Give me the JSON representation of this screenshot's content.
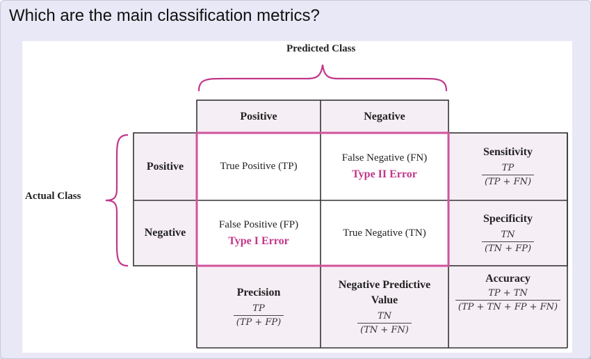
{
  "question": "Which are the main classification metrics?",
  "figure": {
    "predicted_class_label": "Predicted Class",
    "actual_class_label": "Actual Class",
    "col_headers": {
      "positive": "Positive",
      "negative": "Negative"
    },
    "row_headers": {
      "positive": "Positive",
      "negative": "Negative"
    },
    "cells": {
      "tp": "True Positive (TP)",
      "fn": "False Negative (FN)",
      "fn_error": "Type II Error",
      "fp": "False Positive (FP)",
      "fp_error": "Type I Error",
      "tn": "True Negative (TN)"
    },
    "metrics": {
      "sensitivity": {
        "name": "Sensitivity",
        "num": "TP",
        "den": "(TP + FN)"
      },
      "specificity": {
        "name": "Specificity",
        "num": "TN",
        "den": "(TN + FP)"
      },
      "precision": {
        "name": "Precision",
        "num": "TP",
        "den": "(TP + FP)"
      },
      "npv": {
        "name_line1": "Negative Predictive",
        "name_line2": "Value",
        "num": "TN",
        "den": "(TN + FN)"
      },
      "accuracy": {
        "name": "Accuracy",
        "num": "TP + TN",
        "den": "(TP + TN + FP + FN)"
      }
    },
    "colors": {
      "accent": "#c2368a",
      "cell_fill": "#f6eef5",
      "grid": "#333333"
    }
  }
}
